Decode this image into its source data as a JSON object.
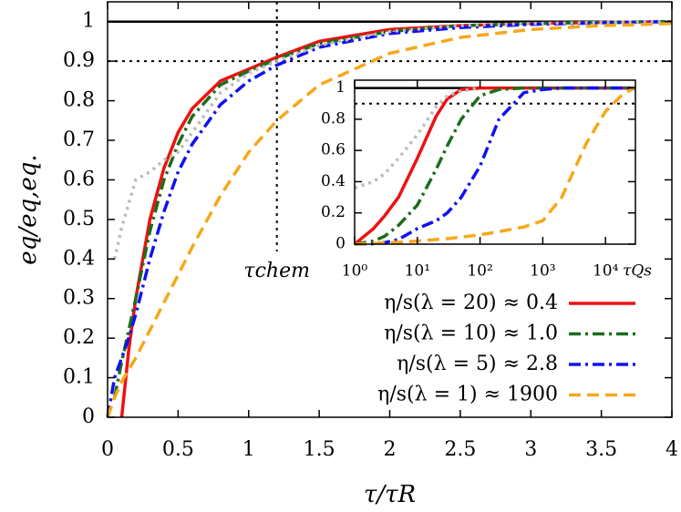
{
  "chart_data": [
    {
      "type": "line",
      "x_label": "τ/τR",
      "y_label": "eq/eq,eq.",
      "x": [
        0,
        0.05,
        0.1,
        0.15,
        0.2,
        0.3,
        0.4,
        0.5,
        0.6,
        0.8,
        1.0,
        1.2,
        1.5,
        2.0,
        2.5,
        3.0,
        3.5,
        4.0
      ],
      "series": [
        {
          "name": "η/s(λ = 20) ≈ 0.4",
          "color": "#ee1111",
          "style": "solid",
          "values": [
            null,
            null,
            0,
            0.17,
            0.3,
            0.5,
            0.63,
            0.72,
            0.78,
            0.85,
            0.88,
            0.91,
            0.95,
            0.98,
            0.99,
            0.995,
            0.998,
            1.0
          ]
        },
        {
          "name": "η/s(λ = 10) ≈ 1.0",
          "color": "#1a6e1a",
          "style": "dashdot",
          "values": [
            null,
            0.05,
            0.14,
            0.22,
            0.3,
            0.47,
            0.6,
            0.69,
            0.76,
            0.84,
            0.875,
            0.905,
            0.945,
            0.975,
            0.99,
            0.995,
            0.998,
            1.0
          ]
        },
        {
          "name": "η/s(λ = 5)   ≈ 2.8",
          "color": "#1111ee",
          "style": "dashdot",
          "values": [
            0,
            0.1,
            0.15,
            0.2,
            0.26,
            0.4,
            0.52,
            0.62,
            0.69,
            0.79,
            0.85,
            0.89,
            0.935,
            0.97,
            0.985,
            0.993,
            0.997,
            1.0
          ]
        },
        {
          "name": "η/s(λ = 1) ≈ 1900",
          "color": "#f5a81c",
          "style": "dashed",
          "values": [
            0,
            0.05,
            0.09,
            0.12,
            0.15,
            0.22,
            0.29,
            0.36,
            0.43,
            0.56,
            0.67,
            0.75,
            0.84,
            0.92,
            0.96,
            0.98,
            0.99,
            0.995
          ]
        },
        {
          "color": "#bbbbbb",
          "style": "dotted",
          "values": [
            null,
            0.4,
            0.48,
            0.54,
            0.6,
            0.62,
            0.65,
            0.67,
            0.72,
            0.82,
            0.87,
            0.9,
            0.94,
            0.975,
            0.99,
            0.995,
            0.998,
            1.0
          ]
        }
      ],
      "xlim": [
        0,
        4
      ],
      "ylim": [
        0,
        1.05
      ],
      "xticks": [
        0,
        0.5,
        1,
        1.5,
        2,
        2.5,
        3,
        3.5,
        4
      ],
      "yticks": [
        0,
        0.1,
        0.2,
        0.3,
        0.4,
        0.5,
        0.6,
        0.7,
        0.8,
        0.9,
        1
      ],
      "hlines": [
        {
          "value": 1,
          "style": "solid"
        },
        {
          "value": 0.9,
          "style": "dotted"
        }
      ],
      "vlines": [
        {
          "value": 1.2,
          "label": "τchem",
          "style": "dotted"
        }
      ],
      "legend": "lower right"
    },
    {
      "type": "line",
      "x_label": "τQs",
      "xscale": "log",
      "x": [
        1,
        2,
        3,
        5,
        10,
        20,
        30,
        50,
        100,
        200,
        500,
        1000,
        2000,
        5000,
        10000,
        20000,
        30000
      ],
      "series": [
        {
          "color": "#ee1111",
          "style": "solid",
          "values": [
            0,
            0.1,
            0.18,
            0.3,
            0.55,
            0.82,
            0.93,
            0.99,
            1,
            1,
            1,
            1,
            1,
            1,
            1,
            1,
            1
          ]
        },
        {
          "color": "#1a6e1a",
          "style": "dashdot",
          "values": [
            0,
            0.02,
            0.05,
            0.12,
            0.25,
            0.48,
            0.63,
            0.8,
            0.95,
            0.99,
            1,
            1,
            1,
            1,
            1,
            1,
            1
          ]
        },
        {
          "color": "#1111ee",
          "style": "dashdot",
          "values": [
            0,
            0.003,
            0.01,
            0.03,
            0.1,
            0.15,
            0.2,
            0.3,
            0.5,
            0.8,
            0.97,
            0.99,
            1,
            1,
            1,
            1,
            1
          ]
        },
        {
          "color": "#f5a81c",
          "style": "dashed",
          "values": [
            0,
            0.005,
            0.008,
            0.012,
            0.02,
            0.03,
            0.035,
            0.045,
            0.06,
            0.08,
            0.11,
            0.15,
            0.3,
            0.65,
            0.85,
            0.97,
            1
          ]
        },
        {
          "color": "#bbbbbb",
          "style": "dotted",
          "values": [
            0.36,
            0.4,
            0.45,
            0.55,
            0.7,
            0.88,
            0.95,
            0.98,
            1,
            null,
            null,
            null,
            null,
            null,
            null,
            null,
            null
          ]
        }
      ],
      "xlim": [
        1,
        30000
      ],
      "ylim": [
        0,
        1.05
      ],
      "xticks": [
        {
          "value": 1,
          "label": "10⁰"
        },
        {
          "value": 10,
          "label": "10¹"
        },
        {
          "value": 100,
          "label": "10²"
        },
        {
          "value": 1000,
          "label": "10³"
        },
        {
          "value": 10000,
          "label": "10⁴"
        }
      ],
      "yticks": [
        0,
        0.2,
        0.4,
        0.6,
        0.8,
        1
      ],
      "hlines": [
        {
          "value": 1,
          "style": "solid"
        },
        {
          "value": 0.9,
          "style": "dotted"
        }
      ]
    }
  ]
}
